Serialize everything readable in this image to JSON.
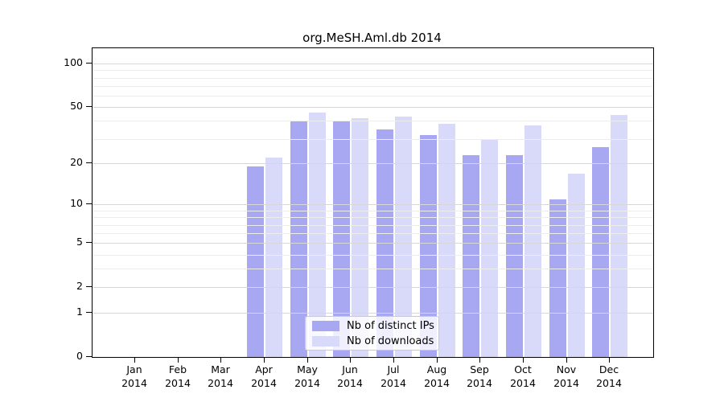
{
  "chart_data": {
    "type": "bar",
    "title": "org.MeSH.Aml.db 2014",
    "categories": [
      "Jan",
      "Feb",
      "Mar",
      "Apr",
      "May",
      "Jun",
      "Jul",
      "Aug",
      "Sep",
      "Oct",
      "Nov",
      "Dec"
    ],
    "category_year": "2014",
    "series": [
      {
        "name": "Nb of distinct IPs",
        "color": "#a8a8f2",
        "values": [
          0,
          0,
          0,
          19,
          40,
          40,
          35,
          32,
          23,
          23,
          11,
          26
        ]
      },
      {
        "name": "Nb of downloads",
        "color": "#d9d9f9",
        "values": [
          0,
          0,
          0,
          22,
          46,
          42,
          43,
          38,
          30,
          37,
          17,
          44
        ]
      }
    ],
    "y_scale": "log1p",
    "y_ticks": [
      0,
      1,
      2,
      5,
      10,
      20,
      50,
      100
    ],
    "y_minor_gridlines": [
      3,
      4,
      6,
      7,
      8,
      9,
      30,
      40,
      60,
      70,
      80,
      90
    ],
    "ylim": [
      0,
      110
    ],
    "grid": true,
    "legend_position": "bottom-center-inside",
    "bar_colors": {
      "distinct_ips": "#a8a8f2",
      "downloads": "#d9d9f9"
    },
    "gridline_colors": {
      "major": "#d7d7d7",
      "minor": "#ededed"
    }
  }
}
